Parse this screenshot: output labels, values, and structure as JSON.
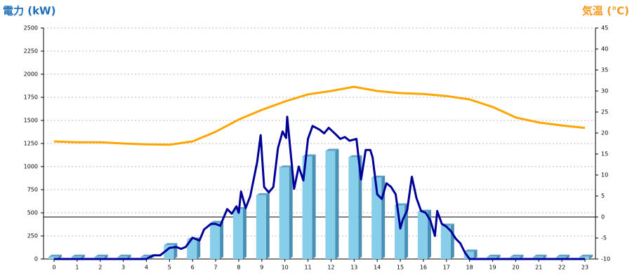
{
  "chart_data": {
    "type": "bar",
    "y_label": "電力 (kW)",
    "y2_label": "気温 (℃)",
    "categories": [
      "0",
      "1",
      "2",
      "3",
      "4",
      "5",
      "6",
      "7",
      "8",
      "9",
      "10",
      "11",
      "12",
      "13",
      "14",
      "15",
      "16",
      "17",
      "18",
      "19",
      "20",
      "21",
      "22",
      "23"
    ],
    "ylim": [
      0,
      2500
    ],
    "yticks": [
      0,
      250,
      500,
      750,
      1000,
      1250,
      1500,
      1750,
      2000,
      2250,
      2500
    ],
    "y2lim": [
      -10,
      45
    ],
    "y2ticks": [
      -10,
      -5,
      0,
      5,
      10,
      15,
      20,
      25,
      30,
      35,
      40,
      45
    ],
    "grid": true,
    "series": [
      {
        "type": "bar",
        "color": "#87ceeb",
        "values": [
          25,
          25,
          25,
          25,
          25,
          150,
          210,
          390,
          540,
          690,
          990,
          1110,
          1170,
          1100,
          880,
          580,
          510,
          360,
          80,
          25,
          25,
          25,
          25,
          25
        ]
      },
      {
        "type": "line",
        "color": "#000099",
        "x": [
          0,
          4,
          4.3,
          4.6,
          5,
          5.3,
          5.5,
          5.7,
          6,
          6.3,
          6.5,
          6.8,
          7,
          7.2,
          7.5,
          7.7,
          7.9,
          8,
          8.1,
          8.3,
          8.5,
          8.8,
          8.95,
          9.1,
          9.3,
          9.5,
          9.7,
          9.9,
          10.05,
          10.1,
          10.4,
          10.6,
          10.8,
          11,
          11.2,
          11.5,
          11.7,
          11.9,
          12.2,
          12.4,
          12.6,
          12.8,
          13.1,
          13.3,
          13.5,
          13.7,
          13.8,
          14,
          14.2,
          14.4,
          14.6,
          14.8,
          15,
          15.1,
          15.3,
          15.5,
          15.7,
          15.9,
          16.1,
          16.3,
          16.5,
          16.6,
          16.8,
          17,
          17.2,
          17.4,
          17.6,
          17.8,
          18,
          23
        ],
        "values": [
          0,
          0,
          40,
          40,
          120,
          130,
          110,
          130,
          230,
          200,
          320,
          380,
          380,
          360,
          540,
          490,
          570,
          500,
          730,
          550,
          680,
          1050,
          1340,
          780,
          720,
          780,
          1200,
          1380,
          1310,
          1540,
          760,
          1000,
          850,
          1300,
          1440,
          1400,
          1360,
          1420,
          1350,
          1300,
          1320,
          1280,
          1300,
          860,
          1180,
          1180,
          1100,
          700,
          650,
          820,
          780,
          700,
          330,
          420,
          530,
          890,
          660,
          520,
          500,
          420,
          250,
          520,
          380,
          350,
          300,
          220,
          170,
          70,
          0,
          0
        ]
      },
      {
        "type": "line",
        "axis": "y2",
        "color": "#ffa500",
        "values": [
          18,
          17.8,
          17.8,
          17.5,
          17.3,
          17.2,
          18,
          20.3,
          23.2,
          25.5,
          27.5,
          29.2,
          30,
          31,
          30,
          29.5,
          29.3,
          28.8,
          28,
          26.2,
          23.7,
          22.5,
          21.8,
          21.2
        ]
      }
    ]
  }
}
